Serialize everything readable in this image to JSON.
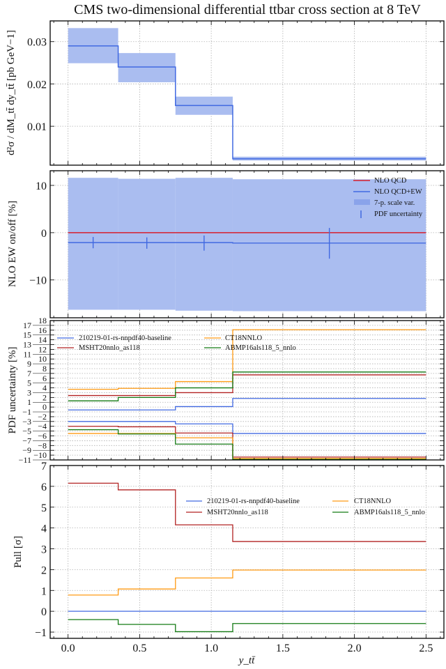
{
  "title": "CMS two-dimensional differential ttbar cross section at 8 TeV",
  "xlabel": "y_tt̄",
  "colors": {
    "blue": "#4169e1",
    "band": "#aabdf0",
    "red_qcd": "#d81e2c",
    "red": "#b22222",
    "orange": "#ff9b14",
    "green": "#137a13",
    "grid": "#b0b0b0"
  },
  "chart_data": [
    {
      "type": "line",
      "panel": "cross-section",
      "ylabel": "d²σ / dM_tt̄ dy_tt̄ [pb GeV−1]",
      "xlim": [
        -0.125,
        2.625
      ],
      "ylim": [
        0.0008,
        0.0349
      ],
      "xticks": [
        "0.0",
        "0.5",
        "1.0",
        "1.5",
        "2.0",
        "2.5"
      ],
      "yticks": [
        "0.01",
        "0.02",
        "0.03"
      ],
      "grid": true,
      "bin_edges": [
        0,
        0.35,
        0.75,
        1.15,
        2.5
      ],
      "series": [
        {
          "values": [
            0.029,
            0.024,
            0.0149,
            0.0023
          ],
          "band_low": [
            0.0249,
            0.0204,
            0.0127,
            0.0019
          ],
          "band_high": [
            0.0332,
            0.0273,
            0.017,
            0.0028
          ],
          "color": "blue"
        }
      ]
    },
    {
      "type": "line",
      "panel": "ew-ratio",
      "ylabel": "NLO EW on/off [%]",
      "xlim": [
        -0.125,
        2.625
      ],
      "ylim": [
        -18,
        13.1
      ],
      "yticks": [
        "−10",
        "0",
        "10"
      ],
      "ytick_values": [
        -10,
        0,
        10
      ],
      "grid": true,
      "legend": "top-right",
      "bin_edges": [
        0,
        0.35,
        0.75,
        1.15,
        2.5
      ],
      "series": [
        {
          "name": "NLO QCD",
          "values": [
            0,
            0,
            0,
            0
          ],
          "color": "red_qcd"
        },
        {
          "name": "NLO QCD+EW",
          "values": [
            -2.1,
            -2.1,
            -2.1,
            -2.2
          ],
          "color": "blue"
        }
      ],
      "band": {
        "name": "7-p. scale var.",
        "low": [
          -16.3,
          -16.3,
          -16.5,
          -16.6
        ],
        "high": [
          11.6,
          11.4,
          11.6,
          11.3
        ]
      },
      "errorbars": {
        "name": "PDF uncertainty",
        "x": [
          0.175,
          0.55,
          0.95,
          1.825
        ],
        "low": [
          -3.3,
          -3.4,
          -3.8,
          -5.5
        ],
        "high": [
          -0.9,
          -1.0,
          -0.6,
          1.0
        ]
      }
    },
    {
      "type": "line",
      "panel": "pdf-uncertainty",
      "ylabel": "PDF uncertainty [%]",
      "xlim": [
        -0.125,
        2.625
      ],
      "ylim": [
        -11,
        18
      ],
      "ytick_range": [
        -11,
        18
      ],
      "grid": true,
      "legend": "top-left",
      "bin_edges": [
        0,
        0.35,
        0.75,
        1.15,
        2.5
      ],
      "series": [
        {
          "name": "210219-01-rs-nnpdf40-baseline",
          "color": "blue",
          "upper": [
            -0.6,
            -0.6,
            0.1,
            1.8
          ],
          "lower": [
            -3.0,
            -3.0,
            -3.5,
            -5.5
          ]
        },
        {
          "name": "MSHT20nnlo_as118",
          "color": "red",
          "upper": [
            2.4,
            2.4,
            3.0,
            6.7
          ],
          "lower": [
            -4.0,
            -4.1,
            -5.4,
            -10.4
          ]
        },
        {
          "name": "CT18NNLO",
          "color": "orange",
          "upper": [
            3.7,
            3.9,
            5.3,
            16.1
          ],
          "lower": [
            -5.5,
            -5.5,
            -6.4,
            -10.7
          ]
        },
        {
          "name": "ABMP16als118_5_nnlo",
          "color": "green",
          "upper": [
            1.3,
            2.0,
            4.0,
            7.3
          ],
          "lower": [
            -4.7,
            -5.6,
            -7.7,
            -10.9
          ]
        }
      ]
    },
    {
      "type": "line",
      "panel": "pull",
      "ylabel": "Pull [σ]",
      "xlim": [
        -0.125,
        2.625
      ],
      "ylim": [
        -1.3,
        7
      ],
      "yticks": [
        "−1",
        "0",
        "1",
        "2",
        "3",
        "4",
        "5",
        "6",
        "7"
      ],
      "ytick_values": [
        -1,
        0,
        1,
        2,
        3,
        4,
        5,
        6,
        7
      ],
      "grid": true,
      "legend": "top-right",
      "bin_edges": [
        0,
        0.35,
        0.75,
        1.15,
        2.5
      ],
      "series": [
        {
          "name": "210219-01-rs-nnpdf40-baseline",
          "color": "blue",
          "values": [
            0,
            0,
            0,
            0
          ]
        },
        {
          "name": "MSHT20nnlo_as118",
          "color": "red",
          "values": [
            6.15,
            5.83,
            4.15,
            3.35
          ]
        },
        {
          "name": "CT18NNLO",
          "color": "orange",
          "values": [
            0.78,
            1.07,
            1.6,
            1.98
          ]
        },
        {
          "name": "ABMP16als118_5_nnlo",
          "color": "green",
          "values": [
            -0.4,
            -0.63,
            -0.98,
            -0.59
          ]
        }
      ]
    }
  ]
}
